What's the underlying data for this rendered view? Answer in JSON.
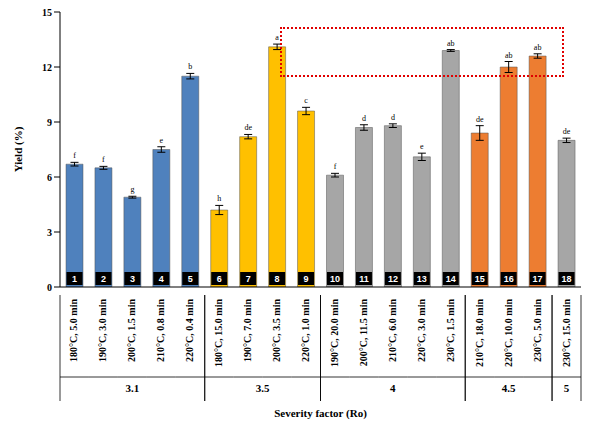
{
  "chart_data": {
    "type": "bar",
    "xlabel": "Severity factor (Ro)",
    "ylabel": "Yield (%)",
    "categories": [
      "180°C, 5.0 min",
      "190°C, 3.0 min",
      "200°C, 1.5 min",
      "210°C, 0.8 min",
      "220°C, 0.4 min",
      "180°C, 15.0 min",
      "190°C, 7.0 min",
      "200°C, 3.5 min",
      "220°C, 1.0 min",
      "190°C, 20.0 min",
      "200°C, 11.5 min",
      "210°C, 6.0 min",
      "220°C, 3.0 min",
      "230°C, 1.5 min",
      "210°C, 18.0 min",
      "220°C, 10.0 min",
      "230°C, 5.0 min",
      "230°C, 15.0 min"
    ],
    "values": [
      6.7,
      6.5,
      4.9,
      7.5,
      11.5,
      4.2,
      8.2,
      13.1,
      9.6,
      6.1,
      8.7,
      8.8,
      7.1,
      12.9,
      8.4,
      12.0,
      12.6,
      8.0
    ],
    "errors": [
      0.1,
      0.08,
      0.05,
      0.15,
      0.15,
      0.25,
      0.12,
      0.15,
      0.2,
      0.1,
      0.15,
      0.1,
      0.2,
      0.05,
      0.4,
      0.3,
      0.12,
      0.12
    ],
    "annotations": [
      "f",
      "f",
      "g",
      "e",
      "b",
      "h",
      "de",
      "a",
      "c",
      "f",
      "d",
      "d",
      "e",
      "ab",
      "de",
      "ab",
      "ab",
      "de"
    ],
    "bar_numbers": [
      1,
      2,
      3,
      4,
      5,
      6,
      7,
      8,
      9,
      10,
      11,
      12,
      13,
      14,
      15,
      16,
      17,
      18
    ],
    "groups": [
      "3.1",
      "3.1",
      "3.1",
      "3.1",
      "3.1",
      "3.5",
      "3.5",
      "3.5",
      "3.5",
      "4",
      "4",
      "4",
      "4",
      "4",
      "4.5",
      "4.5",
      "4.5",
      "5"
    ],
    "colors": [
      "#4f81bd",
      "#4f81bd",
      "#4f81bd",
      "#4f81bd",
      "#4f81bd",
      "#ffc000",
      "#ffc000",
      "#ffc000",
      "#ffc000",
      "#a6a6a6",
      "#a6a6a6",
      "#a6a6a6",
      "#a6a6a6",
      "#a6a6a6",
      "#ed7d31",
      "#ed7d31",
      "#ed7d31",
      "#a6a6a6"
    ],
    "ylim": [
      0,
      15
    ],
    "yticks": [
      0,
      3,
      6,
      9,
      12,
      15
    ],
    "grid": false
  }
}
